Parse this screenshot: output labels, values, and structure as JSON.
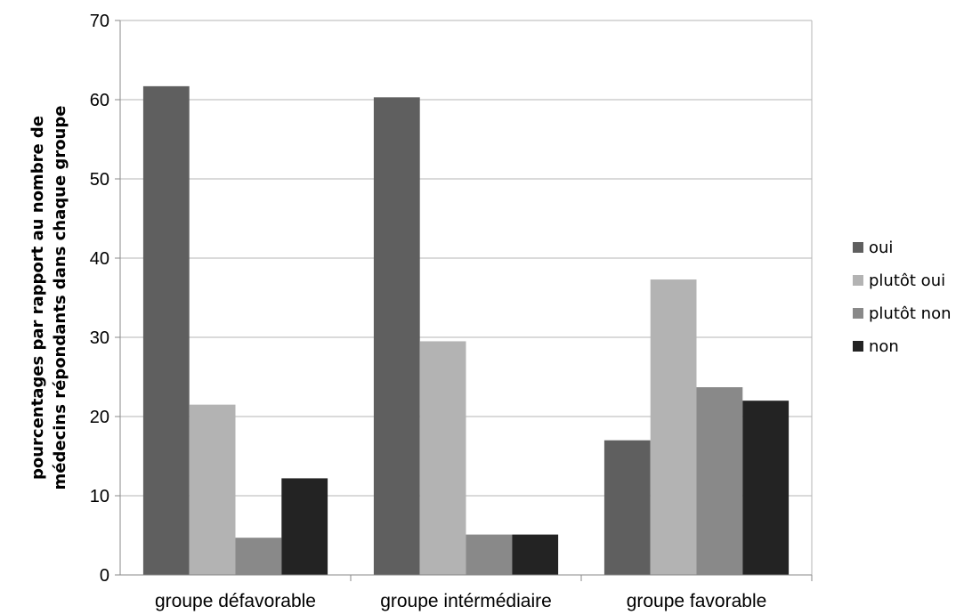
{
  "chart_data": {
    "type": "bar",
    "categories": [
      "groupe défavorable",
      "groupe intérmédiaire",
      "groupe favorable"
    ],
    "series": [
      {
        "name": "oui",
        "values": [
          61.7,
          60.3,
          17.0
        ],
        "color": "#5f5f5f"
      },
      {
        "name": "plutôt oui",
        "values": [
          21.5,
          29.5,
          37.3
        ],
        "color": "#b3b3b3"
      },
      {
        "name": "plutôt non",
        "values": [
          4.7,
          5.1,
          23.7
        ],
        "color": "#898989"
      },
      {
        "name": "non",
        "values": [
          12.2,
          5.1,
          22.0
        ],
        "color": "#232323"
      }
    ],
    "ylim": [
      0,
      70
    ],
    "yticks": [
      0,
      10,
      20,
      30,
      40,
      50,
      60,
      70
    ],
    "ylabel": [
      "pourcentages par rapport au nombre de",
      "médecins répondants dans chaque groupe"
    ],
    "xlabel": "",
    "grid": true,
    "legend_position": "right"
  }
}
